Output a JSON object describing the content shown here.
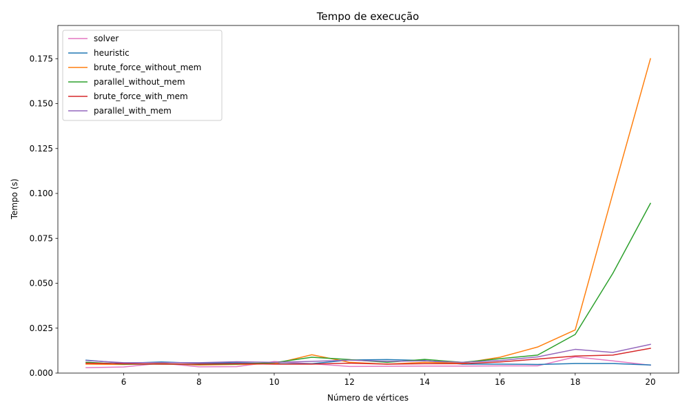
{
  "chart_data": {
    "type": "line",
    "title": "Tempo de execução",
    "xlabel": "Número de vértices",
    "ylabel": "Tempo (s)",
    "xlim": [
      4.25,
      20.75
    ],
    "ylim": [
      0,
      0.1935
    ],
    "xticks": [
      6,
      8,
      10,
      12,
      14,
      16,
      18,
      20
    ],
    "yticks": [
      0.0,
      0.025,
      0.05,
      0.075,
      0.1,
      0.125,
      0.15,
      0.175
    ],
    "ytick_labels": [
      "0.000",
      "0.025",
      "0.050",
      "0.075",
      "0.100",
      "0.125",
      "0.150",
      "0.175"
    ],
    "grid": false,
    "legend_position": "top-left",
    "x": [
      5,
      6,
      7,
      8,
      9,
      10,
      11,
      12,
      13,
      14,
      15,
      16,
      17,
      18,
      19,
      20
    ],
    "series": [
      {
        "name": "solver",
        "color": "#e377c2",
        "values": [
          0.003,
          0.0034,
          0.0055,
          0.0035,
          0.0036,
          0.0064,
          0.0052,
          0.0037,
          0.0038,
          0.0039,
          0.0039,
          0.004,
          0.004,
          0.009,
          0.0068,
          0.0044
        ]
      },
      {
        "name": "heuristic",
        "color": "#1f77b4",
        "values": [
          0.0072,
          0.0055,
          0.0062,
          0.0055,
          0.0057,
          0.0052,
          0.0052,
          0.0073,
          0.0075,
          0.007,
          0.005,
          0.005,
          0.0048,
          0.0053,
          0.0053,
          0.0045
        ]
      },
      {
        "name": "brute_force_without_mem",
        "color": "#ff7f0e",
        "values": [
          0.005,
          0.0048,
          0.0053,
          0.0045,
          0.0048,
          0.0052,
          0.0102,
          0.006,
          0.005,
          0.006,
          0.0055,
          0.0088,
          0.0145,
          0.024,
          0.1,
          0.175
        ]
      },
      {
        "name": "parallel_without_mem",
        "color": "#2ca02c",
        "values": [
          0.006,
          0.005,
          0.005,
          0.0048,
          0.005,
          0.0058,
          0.0088,
          0.0075,
          0.006,
          0.0076,
          0.006,
          0.008,
          0.01,
          0.0215,
          0.0555,
          0.0945
        ]
      },
      {
        "name": "brute_force_with_mem",
        "color": "#d62728",
        "values": [
          0.0055,
          0.0052,
          0.005,
          0.005,
          0.0052,
          0.005,
          0.005,
          0.0055,
          0.005,
          0.0052,
          0.0052,
          0.0062,
          0.0078,
          0.0095,
          0.01,
          0.0138
        ]
      },
      {
        "name": "parallel_with_mem",
        "color": "#9467bd",
        "values": [
          0.007,
          0.0058,
          0.0058,
          0.0058,
          0.0063,
          0.006,
          0.0065,
          0.0072,
          0.0065,
          0.0068,
          0.006,
          0.007,
          0.009,
          0.0132,
          0.0115,
          0.016
        ]
      }
    ]
  }
}
